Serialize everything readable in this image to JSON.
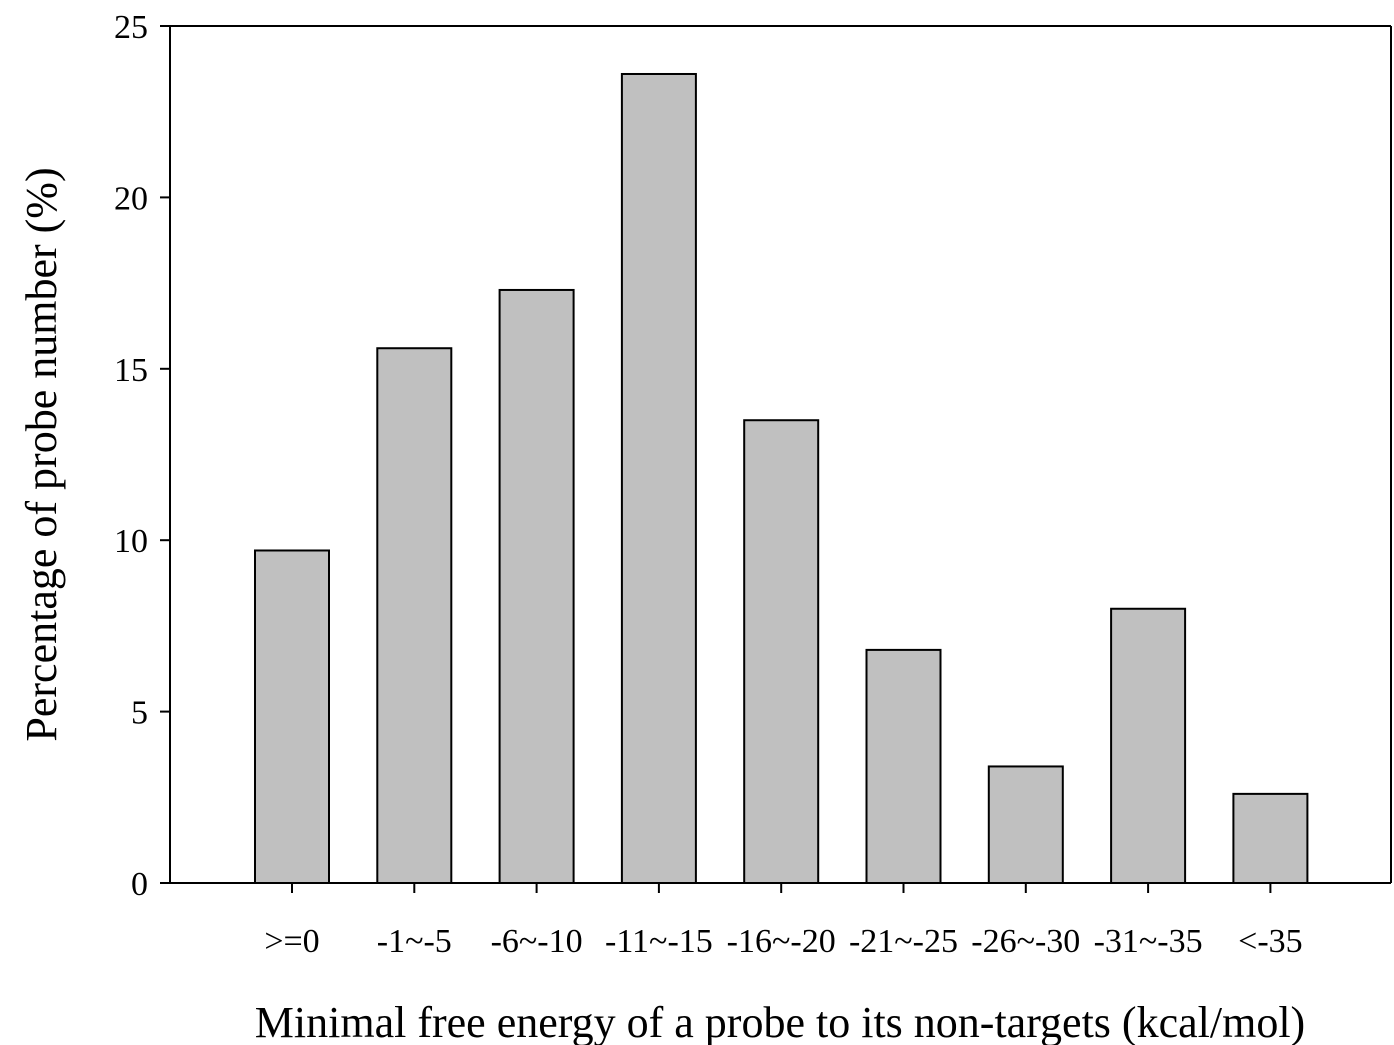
{
  "chart_data": {
    "type": "bar",
    "categories": [
      ">=0",
      "-1~-5",
      "-6~-10",
      "-11~-15",
      "-16~-20",
      "-21~-25",
      "-26~-30",
      "-31~-35",
      "<-35"
    ],
    "values": [
      9.7,
      15.6,
      17.3,
      23.6,
      13.5,
      6.8,
      3.4,
      8.0,
      2.6
    ],
    "xlabel": "Minimal free energy of a probe to its non-targets (kcal/mol)",
    "ylabel": "Percentage of probe number (%)",
    "ylim": [
      0,
      25
    ],
    "yticks": [
      0,
      5,
      10,
      15,
      20,
      25
    ],
    "grid": false,
    "legend": "none",
    "colors": {
      "bar_fill": "#c0c0c0",
      "bar_stroke": "#000000"
    }
  }
}
